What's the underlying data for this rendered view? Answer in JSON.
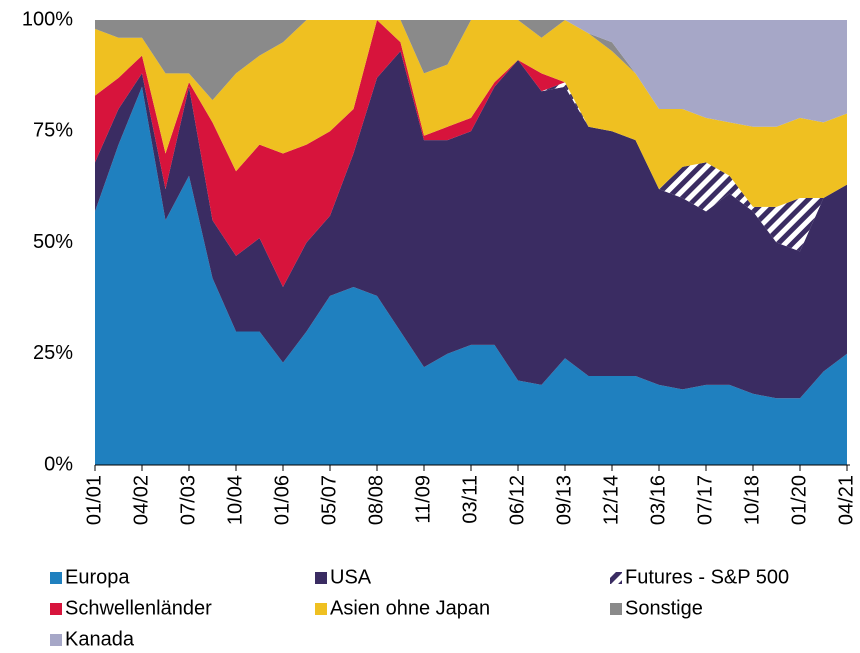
{
  "chart_data": {
    "type": "stacked_area",
    "categories": [
      "01/01",
      null,
      "04/02",
      null,
      "07/03",
      null,
      "10/04",
      null,
      "01/06",
      null,
      "05/07",
      null,
      "08/08",
      null,
      "11/09",
      null,
      "03/11",
      null,
      "06/12",
      null,
      "09/13",
      null,
      "12/14",
      null,
      "03/16",
      null,
      "07/17",
      null,
      "10/18",
      null,
      "01/20",
      null,
      "04/21"
    ],
    "ylim": [
      0,
      100
    ],
    "yticks": [
      {
        "value": 0,
        "label": "0%"
      },
      {
        "value": 25,
        "label": "25%"
      },
      {
        "value": 50,
        "label": "50%"
      },
      {
        "value": 75,
        "label": "75%"
      },
      {
        "value": 100,
        "label": "100%"
      }
    ],
    "series": [
      {
        "name": "Europa",
        "color": "#1f80bf",
        "values": [
          57,
          72,
          85,
          55,
          65,
          42,
          30,
          30,
          23,
          30,
          38,
          40,
          38,
          30,
          22,
          25,
          27,
          27,
          19,
          18,
          24,
          20,
          20,
          20,
          18,
          17,
          18,
          18,
          16,
          15,
          15,
          21,
          25
        ]
      },
      {
        "name": "USA",
        "color": "#3a2c62",
        "values": [
          11,
          8,
          3,
          7,
          20,
          13,
          17,
          21,
          17,
          20,
          18,
          30,
          49,
          63,
          51,
          48,
          48,
          58,
          72,
          66,
          61,
          56,
          55,
          53,
          44,
          43,
          39,
          43,
          41,
          35,
          33,
          39,
          38
        ]
      },
      {
        "name": "Futures - S&P 500",
        "color": "#3a2c62",
        "hatch": true,
        "values": [
          0,
          0,
          0,
          0,
          0,
          0,
          0,
          0,
          0,
          0,
          0,
          0,
          0,
          0,
          0,
          0,
          0,
          0,
          0,
          0,
          1,
          0,
          0,
          0,
          0,
          7,
          11,
          4,
          1,
          8,
          12,
          0,
          0
        ]
      },
      {
        "name": "Schwellenländer",
        "color": "#d7143c",
        "values": [
          15,
          7,
          4,
          8,
          1,
          22,
          19,
          21,
          30,
          22,
          19,
          10,
          13,
          2,
          1,
          3,
          3,
          1,
          0,
          4,
          0,
          0,
          0,
          0,
          0,
          0,
          0,
          0,
          0,
          0,
          0,
          0,
          0
        ]
      },
      {
        "name": "Asien ohne Japan",
        "color": "#efc021",
        "values": [
          15,
          9,
          4,
          18,
          2,
          5,
          22,
          20,
          25,
          28,
          25,
          20,
          0,
          5,
          14,
          14,
          22,
          14,
          9,
          8,
          14,
          21,
          18,
          15,
          18,
          13,
          10,
          12,
          18,
          18,
          18,
          17,
          16
        ]
      },
      {
        "name": "Sonstige",
        "color": "#8a8a8a",
        "values": [
          2,
          4,
          4,
          12,
          12,
          18,
          12,
          8,
          5,
          0,
          0,
          0,
          0,
          0,
          12,
          10,
          0,
          0,
          0,
          4,
          0,
          0,
          2,
          0,
          0,
          0,
          0,
          0,
          0,
          0,
          0,
          0,
          0
        ]
      },
      {
        "name": "Kanada",
        "color": "#a6a7c7",
        "values": [
          0,
          0,
          0,
          0,
          0,
          0,
          0,
          0,
          0,
          0,
          0,
          0,
          0,
          0,
          0,
          0,
          0,
          0,
          0,
          0,
          0,
          3,
          5,
          12,
          20,
          20,
          22,
          23,
          24,
          24,
          22,
          23,
          21
        ]
      }
    ]
  }
}
